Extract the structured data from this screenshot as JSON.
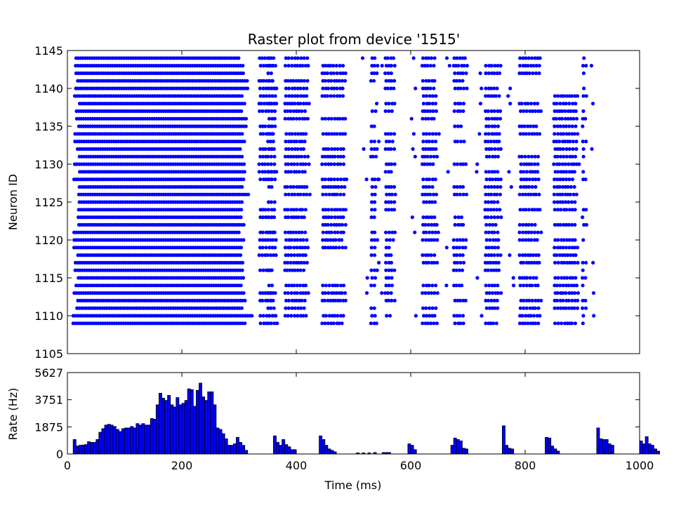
{
  "chart_data": [
    {
      "type": "scatter",
      "title": "Raster plot from device '1515'",
      "xlabel": "",
      "ylabel": "Neuron ID",
      "xlim": [
        0,
        1000
      ],
      "ylim": [
        1105,
        1145
      ],
      "yticks": [
        "1105",
        "1110",
        "1115",
        "1120",
        "1125",
        "1130",
        "1135",
        "1140",
        "1145"
      ],
      "marker_color": "#0000ff",
      "neuron_ids": [
        1109,
        1110,
        1111,
        1112,
        1113,
        1114,
        1115,
        1116,
        1117,
        1118,
        1119,
        1120,
        1121,
        1122,
        1123,
        1124,
        1125,
        1126,
        1127,
        1128,
        1129,
        1130,
        1131,
        1132,
        1133,
        1134,
        1135,
        1136,
        1137,
        1138,
        1139,
        1140,
        1141,
        1142,
        1143,
        1144
      ],
      "regular_spiking": {
        "start_ms": 10,
        "end_ms": 330,
        "interval_ms": 4
      },
      "burst_windows_ms": [
        [
          335,
          368
        ],
        [
          350,
          365
        ],
        [
          380,
          425
        ],
        [
          445,
          490
        ],
        [
          530,
          545
        ],
        [
          555,
          575
        ],
        [
          620,
          650
        ],
        [
          675,
          700
        ],
        [
          730,
          760
        ],
        [
          790,
          830
        ],
        [
          850,
          895
        ],
        [
          900,
          910
        ]
      ],
      "isolated_spikes_ms": [
        515,
        540,
        600,
        660,
        715,
        770,
        910
      ]
    },
    {
      "type": "bar",
      "title": "",
      "xlabel": "Time (ms)",
      "ylabel": "Rate (Hz)",
      "xlim": [
        0,
        1000
      ],
      "ylim": [
        0,
        5627
      ],
      "xticks": [
        "0",
        "200",
        "400",
        "600",
        "800",
        "1000"
      ],
      "yticks": [
        "0",
        "1875",
        "3751",
        "5627"
      ],
      "bar_color": "#0000ff",
      "bin_ms": 5,
      "bin_start_ms": 10,
      "values": [
        1000,
        550,
        600,
        620,
        650,
        850,
        800,
        800,
        1000,
        1500,
        1750,
        2000,
        2050,
        2000,
        1900,
        1700,
        1550,
        1750,
        1800,
        1800,
        1900,
        1800,
        2100,
        2000,
        2100,
        2000,
        2000,
        2450,
        2400,
        3400,
        4200,
        3850,
        3700,
        4050,
        3400,
        3250,
        3900,
        3400,
        3500,
        3700,
        4500,
        4450,
        3300,
        4400,
        4900,
        3950,
        3700,
        4300,
        4300,
        3400,
        1800,
        1700,
        1400,
        1050,
        600,
        600,
        700,
        1150,
        800,
        600,
        250,
        0,
        0,
        0,
        0,
        0,
        0,
        0,
        0,
        0,
        1250,
        800,
        600,
        1000,
        650,
        500,
        300,
        300,
        0,
        0,
        0,
        0,
        0,
        0,
        0,
        0,
        1250,
        1000,
        600,
        350,
        250,
        150,
        0,
        0,
        0,
        0,
        0,
        0,
        0,
        80,
        0,
        80,
        0,
        80,
        0,
        100,
        0,
        0,
        100,
        100,
        100,
        0,
        0,
        0,
        0,
        0,
        0,
        700,
        600,
        300,
        0,
        0,
        0,
        0,
        0,
        0,
        0,
        0,
        0,
        0,
        0,
        0,
        600,
        1100,
        1000,
        900,
        400,
        350,
        0,
        0,
        0,
        0,
        0,
        0,
        0,
        0,
        0,
        0,
        0,
        0,
        1950,
        600,
        400,
        350,
        0,
        0,
        0,
        0,
        0,
        0,
        0,
        0,
        0,
        0,
        0,
        1150,
        1100,
        550,
        350,
        200,
        0,
        0,
        0,
        0,
        0,
        0,
        0,
        0,
        0,
        0,
        0,
        0,
        0,
        1800,
        1050,
        1000,
        1000,
        700,
        600,
        0,
        0,
        0,
        0,
        0,
        0,
        0,
        0,
        0,
        900,
        700,
        1200,
        700,
        600,
        350,
        200
      ]
    }
  ]
}
